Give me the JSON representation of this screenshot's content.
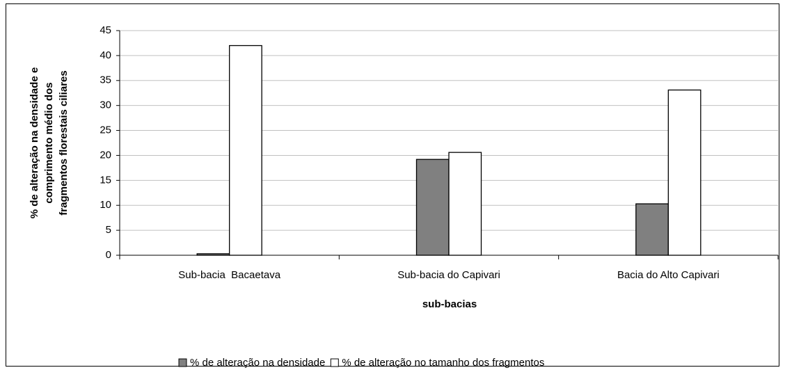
{
  "chart_data": {
    "type": "bar",
    "x_label": "sub-bacias",
    "y_label": [
      "% de alteração na densidade e",
      "comprimento médio dos",
      "fragmentos florestais ciliares"
    ],
    "categories": [
      "Sub-bacia  Bacaetava",
      "Sub-bacia do Capivari",
      "Bacia do Alto Capivari"
    ],
    "series": [
      {
        "name": "% de alteração na densidade",
        "color": "#808080",
        "values": [
          0.3,
          19.2,
          10.3
        ]
      },
      {
        "name": "% de alteração no tamanho dos fragmentos",
        "color": "#ffffff",
        "values": [
          42,
          20.6,
          33.1
        ]
      }
    ],
    "ylim": [
      0,
      45
    ],
    "yticks": [
      0,
      5,
      10,
      15,
      20,
      25,
      30,
      35,
      40,
      45
    ],
    "grid": true,
    "legend": "bottom"
  }
}
